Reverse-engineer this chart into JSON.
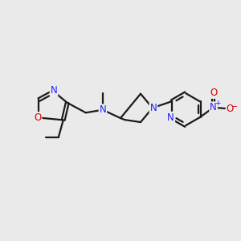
{
  "bg_color": "#eaeaea",
  "bond_color": "#1a1a1a",
  "N_color": "#2020ff",
  "O_color": "#dd0000",
  "line_width": 1.6,
  "font_size": 8.5,
  "fig_w": 3.0,
  "fig_h": 3.0,
  "dpi": 100,
  "xlim": [
    0,
    10
  ],
  "ylim": [
    0,
    10
  ]
}
